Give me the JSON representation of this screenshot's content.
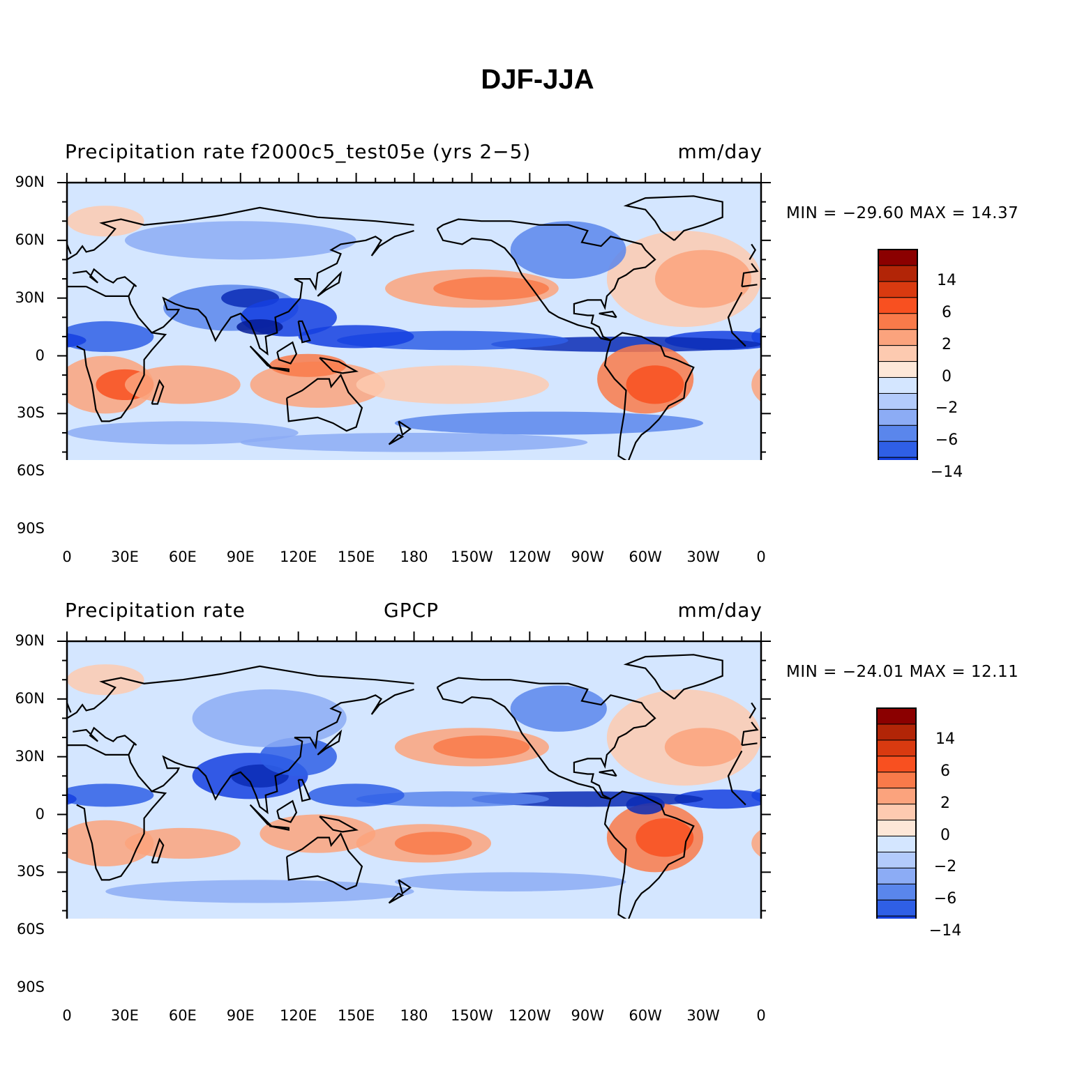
{
  "title": "DJF-JJA",
  "panels": [
    {
      "left_label": "Precipitation rate",
      "center_label": "f2000c5_test05e (yrs 2−5)",
      "right_label": "mm/day",
      "min_label": "MIN = ",
      "min_value": "−29.60",
      "max_label": " MAX = ",
      "max_value": "14.37"
    },
    {
      "left_label": "Precipitation rate",
      "center_label": "GPCP",
      "right_label": "mm/day",
      "min_label": "MIN = ",
      "min_value": "−24.01",
      "max_label": " MAX = ",
      "max_value": "12.11"
    }
  ],
  "y_ticks": [
    "90N",
    "60N",
    "30N",
    "0",
    "30S",
    "60S",
    "90S"
  ],
  "x_ticks": [
    "0",
    "30E",
    "60E",
    "90E",
    "120E",
    "150E",
    "180",
    "150W",
    "120W",
    "90W",
    "60W",
    "30W",
    "0"
  ],
  "colorbar": {
    "labels": [
      "14",
      "6",
      "2",
      "0",
      "−2",
      "−6",
      "−14"
    ],
    "colors": [
      "#8b0000",
      "#b22507",
      "#d93a10",
      "#f85020",
      "#f97a4a",
      "#fba37d",
      "#fdcab0",
      "#fde7d8",
      "#d4e6ff",
      "#b3cbfb",
      "#8cacf5",
      "#5a86ec",
      "#2f5fe6",
      "#1540e0",
      "#0a2bb5",
      "#061c96",
      "#030f83"
    ]
  },
  "map": {
    "ocean_color": "#d4e6ff",
    "coast_color": "#000000"
  }
}
